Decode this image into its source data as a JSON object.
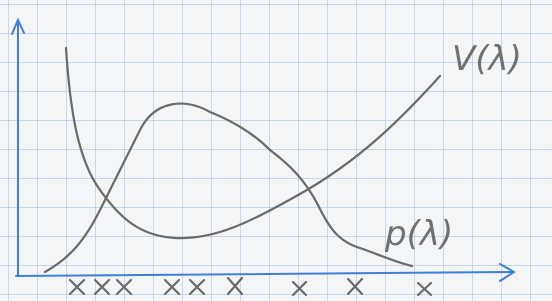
{
  "labels": {
    "v_curve": "V(λ)",
    "p_curve": "p(λ)"
  }
}
